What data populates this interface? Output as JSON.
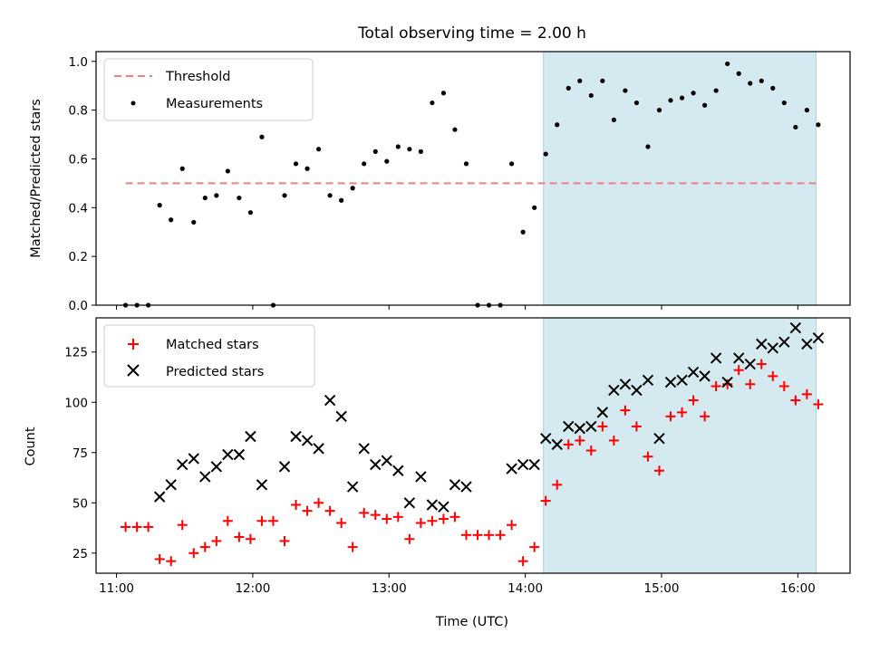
{
  "chart_data": [
    {
      "type": "scatter",
      "title": "Total observing time = 2.00 h",
      "xlabel": "",
      "ylabel": "Matched/Predicted stars",
      "ylim": [
        0,
        1.04
      ],
      "yticks": [
        "0.0",
        "0.2",
        "0.4",
        "0.6",
        "0.8",
        "1.0"
      ],
      "ytick_values": [
        0,
        0.2,
        0.4,
        0.6,
        0.8,
        1.0
      ],
      "xlim": [
        "10:51",
        "16:23"
      ],
      "highlight_span": {
        "x_start": "14:08",
        "x_end": "16:08",
        "color": "#d4eaf0"
      },
      "threshold": {
        "name": "Threshold",
        "y": 0.5,
        "x_start": "11:04",
        "x_end": "16:08",
        "color": "#f08080"
      },
      "series": [
        {
          "name": "Measurements",
          "color": "#000000",
          "points": [
            [
              "11:04",
              0.0
            ],
            [
              "11:09",
              0.0
            ],
            [
              "11:14",
              0.0
            ],
            [
              "11:19",
              0.41
            ],
            [
              "11:24",
              0.35
            ],
            [
              "11:29",
              0.56
            ],
            [
              "11:34",
              0.34
            ],
            [
              "11:39",
              0.44
            ],
            [
              "11:44",
              0.45
            ],
            [
              "11:49",
              0.55
            ],
            [
              "11:54",
              0.44
            ],
            [
              "11:59",
              0.38
            ],
            [
              "12:04",
              0.69
            ],
            [
              "12:09",
              0.0
            ],
            [
              "12:14",
              0.45
            ],
            [
              "12:19",
              0.58
            ],
            [
              "12:24",
              0.56
            ],
            [
              "12:29",
              0.64
            ],
            [
              "12:34",
              0.45
            ],
            [
              "12:39",
              0.43
            ],
            [
              "12:44",
              0.48
            ],
            [
              "12:49",
              0.58
            ],
            [
              "12:54",
              0.63
            ],
            [
              "12:59",
              0.59
            ],
            [
              "13:04",
              0.65
            ],
            [
              "13:09",
              0.64
            ],
            [
              "13:14",
              0.63
            ],
            [
              "13:19",
              0.83
            ],
            [
              "13:24",
              0.87
            ],
            [
              "13:29",
              0.72
            ],
            [
              "13:34",
              0.58
            ],
            [
              "13:39",
              0.0
            ],
            [
              "13:44",
              0.0
            ],
            [
              "13:49",
              0.0
            ],
            [
              "13:54",
              0.58
            ],
            [
              "13:59",
              0.3
            ],
            [
              "14:04",
              0.4
            ],
            [
              "14:09",
              0.62
            ],
            [
              "14:14",
              0.74
            ],
            [
              "14:19",
              0.89
            ],
            [
              "14:24",
              0.92
            ],
            [
              "14:29",
              0.86
            ],
            [
              "14:34",
              0.92
            ],
            [
              "14:39",
              0.76
            ],
            [
              "14:44",
              0.88
            ],
            [
              "14:49",
              0.83
            ],
            [
              "14:54",
              0.65
            ],
            [
              "14:59",
              0.8
            ],
            [
              "15:04",
              0.84
            ],
            [
              "15:09",
              0.85
            ],
            [
              "15:14",
              0.87
            ],
            [
              "15:19",
              0.82
            ],
            [
              "15:24",
              0.88
            ],
            [
              "15:29",
              0.99
            ],
            [
              "15:34",
              0.95
            ],
            [
              "15:39",
              0.91
            ],
            [
              "15:44",
              0.92
            ],
            [
              "15:49",
              0.89
            ],
            [
              "15:54",
              0.83
            ],
            [
              "15:59",
              0.73
            ],
            [
              "16:04",
              0.8
            ],
            [
              "16:09",
              0.74
            ]
          ]
        }
      ],
      "legend": {
        "position": "upper left",
        "entries": [
          "Threshold",
          "Measurements"
        ]
      }
    },
    {
      "type": "scatter",
      "title": "",
      "xlabel": "Time (UTC)",
      "ylabel": "Count",
      "ylim": [
        15,
        142
      ],
      "yticks": [
        "25",
        "50",
        "75",
        "100",
        "125"
      ],
      "ytick_values": [
        25,
        50,
        75,
        100,
        125
      ],
      "xlim": [
        "10:51",
        "16:23"
      ],
      "xticks": [
        "11:00",
        "12:00",
        "13:00",
        "14:00",
        "15:00",
        "16:00"
      ],
      "highlight_span": {
        "x_start": "14:08",
        "x_end": "16:08",
        "color": "#d4eaf0"
      },
      "series": [
        {
          "name": "Matched stars",
          "marker": "plus",
          "color": "#ff0000",
          "points": [
            [
              "11:04",
              38
            ],
            [
              "11:09",
              38
            ],
            [
              "11:14",
              38
            ],
            [
              "11:19",
              22
            ],
            [
              "11:24",
              21
            ],
            [
              "11:29",
              39
            ],
            [
              "11:34",
              25
            ],
            [
              "11:39",
              28
            ],
            [
              "11:44",
              31
            ],
            [
              "11:49",
              41
            ],
            [
              "11:54",
              33
            ],
            [
              "11:59",
              32
            ],
            [
              "12:04",
              41
            ],
            [
              "12:09",
              41
            ],
            [
              "12:14",
              31
            ],
            [
              "12:19",
              49
            ],
            [
              "12:24",
              46
            ],
            [
              "12:29",
              50
            ],
            [
              "12:34",
              46
            ],
            [
              "12:39",
              40
            ],
            [
              "12:44",
              28
            ],
            [
              "12:49",
              45
            ],
            [
              "12:54",
              44
            ],
            [
              "12:59",
              42
            ],
            [
              "13:04",
              43
            ],
            [
              "13:09",
              32
            ],
            [
              "13:14",
              40
            ],
            [
              "13:19",
              41
            ],
            [
              "13:24",
              42
            ],
            [
              "13:29",
              43
            ],
            [
              "13:34",
              34
            ],
            [
              "13:39",
              34
            ],
            [
              "13:44",
              34
            ],
            [
              "13:49",
              34
            ],
            [
              "13:54",
              39
            ],
            [
              "13:59",
              21
            ],
            [
              "14:04",
              28
            ],
            [
              "14:09",
              51
            ],
            [
              "14:14",
              59
            ],
            [
              "14:19",
              79
            ],
            [
              "14:24",
              81
            ],
            [
              "14:29",
              76
            ],
            [
              "14:34",
              88
            ],
            [
              "14:39",
              81
            ],
            [
              "14:44",
              96
            ],
            [
              "14:49",
              88
            ],
            [
              "14:54",
              73
            ],
            [
              "14:59",
              66
            ],
            [
              "15:04",
              93
            ],
            [
              "15:09",
              95
            ],
            [
              "15:14",
              101
            ],
            [
              "15:19",
              93
            ],
            [
              "15:24",
              108
            ],
            [
              "15:29",
              109
            ],
            [
              "15:34",
              116
            ],
            [
              "15:39",
              109
            ],
            [
              "15:44",
              119
            ],
            [
              "15:49",
              113
            ],
            [
              "15:54",
              108
            ],
            [
              "15:59",
              101
            ],
            [
              "16:04",
              104
            ],
            [
              "16:09",
              99
            ]
          ]
        },
        {
          "name": "Predicted stars",
          "marker": "x",
          "color": "#000000",
          "points": [
            [
              "11:19",
              53
            ],
            [
              "11:24",
              59
            ],
            [
              "11:29",
              69
            ],
            [
              "11:34",
              72
            ],
            [
              "11:39",
              63
            ],
            [
              "11:44",
              68
            ],
            [
              "11:49",
              74
            ],
            [
              "11:54",
              74
            ],
            [
              "11:59",
              83
            ],
            [
              "12:04",
              59
            ],
            [
              "12:14",
              68
            ],
            [
              "12:19",
              83
            ],
            [
              "12:24",
              81
            ],
            [
              "12:29",
              77
            ],
            [
              "12:34",
              101
            ],
            [
              "12:39",
              93
            ],
            [
              "12:44",
              58
            ],
            [
              "12:49",
              77
            ],
            [
              "12:54",
              69
            ],
            [
              "12:59",
              71
            ],
            [
              "13:04",
              66
            ],
            [
              "13:09",
              50
            ],
            [
              "13:14",
              63
            ],
            [
              "13:19",
              49
            ],
            [
              "13:24",
              48
            ],
            [
              "13:29",
              59
            ],
            [
              "13:34",
              58
            ],
            [
              "13:54",
              67
            ],
            [
              "13:59",
              69
            ],
            [
              "14:04",
              69
            ],
            [
              "14:09",
              82
            ],
            [
              "14:14",
              79
            ],
            [
              "14:19",
              88
            ],
            [
              "14:24",
              87
            ],
            [
              "14:29",
              88
            ],
            [
              "14:34",
              95
            ],
            [
              "14:39",
              106
            ],
            [
              "14:44",
              109
            ],
            [
              "14:49",
              106
            ],
            [
              "14:54",
              111
            ],
            [
              "14:59",
              82
            ],
            [
              "15:04",
              110
            ],
            [
              "15:09",
              111
            ],
            [
              "15:14",
              115
            ],
            [
              "15:19",
              113
            ],
            [
              "15:24",
              122
            ],
            [
              "15:29",
              110
            ],
            [
              "15:34",
              122
            ],
            [
              "15:39",
              119
            ],
            [
              "15:44",
              129
            ],
            [
              "15:49",
              127
            ],
            [
              "15:54",
              130
            ],
            [
              "15:59",
              137
            ],
            [
              "16:04",
              129
            ],
            [
              "16:09",
              132
            ]
          ]
        }
      ],
      "legend": {
        "position": "upper left",
        "entries": [
          "Matched stars",
          "Predicted stars"
        ]
      }
    }
  ]
}
